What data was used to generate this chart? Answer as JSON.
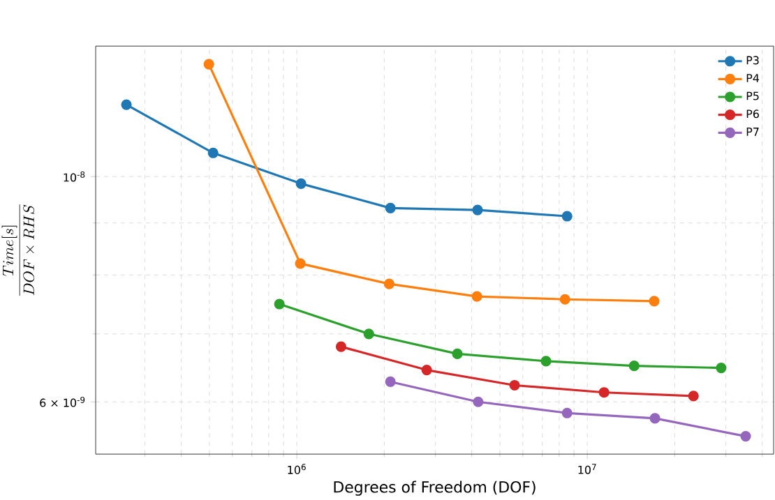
{
  "chart_data": {
    "type": "line",
    "xlabel": "Degrees of Freedom (DOF)",
    "ylabel": "\\frac{Time[s]}{DOF\\times RHS}",
    "xlim": [
      203000,
      43800000
    ],
    "ylim": [
      5.33e-09,
      1.344e-08
    ],
    "log": "xy",
    "xticks": [
      {
        "value": 300000,
        "label": null
      },
      {
        "value": 400000,
        "label": null
      },
      {
        "value": 500000,
        "label": null
      },
      {
        "value": 600000,
        "label": null
      },
      {
        "value": 700000,
        "label": null
      },
      {
        "value": 800000,
        "label": null
      },
      {
        "value": 900000,
        "label": null
      },
      {
        "value": 1000000,
        "label": "10$^{6}$"
      },
      {
        "value": 2000000,
        "label": null
      },
      {
        "value": 3000000,
        "label": null
      },
      {
        "value": 4000000,
        "label": null
      },
      {
        "value": 5000000,
        "label": null
      },
      {
        "value": 6000000,
        "label": null
      },
      {
        "value": 7000000,
        "label": null
      },
      {
        "value": 8000000,
        "label": null
      },
      {
        "value": 9000000,
        "label": null
      },
      {
        "value": 10000000,
        "label": "10$^{7}$"
      },
      {
        "value": 20000000,
        "label": null
      },
      {
        "value": 30000000,
        "label": null
      },
      {
        "value": 40000000,
        "label": null
      }
    ],
    "yticks": [
      {
        "value": 6e-09,
        "label": "6 × 10$^{-9}$"
      },
      {
        "value": 7e-09,
        "label": null
      },
      {
        "value": 8e-09,
        "label": null
      },
      {
        "value": 9e-09,
        "label": null
      },
      {
        "value": 1e-08,
        "label": "10$^{-8}$"
      }
    ],
    "grid": true,
    "legend": "top right",
    "marker": "circle",
    "line_style": "solid",
    "series": [
      {
        "name": "P3",
        "color": "#1f77b4",
        "x": [
          259000,
          515000,
          1034000,
          2100000,
          4190000,
          8520000
        ],
        "values": [
          1.177e-08,
          1.055e-08,
          9.84e-09,
          9.31e-09,
          9.27e-09,
          9.14e-09
        ]
      },
      {
        "name": "P4",
        "color": "#ff7f0e",
        "x": [
          498000,
          1028000,
          2080000,
          4170000,
          8380000,
          17000000
        ],
        "values": [
          1.29e-08,
          8.21e-09,
          7.84e-09,
          7.62e-09,
          7.57e-09,
          7.54e-09
        ]
      },
      {
        "name": "P5",
        "color": "#2ca02c",
        "x": [
          871000,
          1770000,
          3570000,
          7210000,
          14500000,
          28900000
        ],
        "values": [
          7.49e-09,
          7e-09,
          6.69e-09,
          6.58e-09,
          6.51e-09,
          6.48e-09
        ]
      },
      {
        "name": "P6",
        "color": "#d62728",
        "x": [
          1420000,
          2800000,
          5620000,
          11420000,
          23200000
        ],
        "values": [
          6.8e-09,
          6.45e-09,
          6.23e-09,
          6.13e-09,
          6.08e-09
        ]
      },
      {
        "name": "P7",
        "color": "#9467bd",
        "x": [
          2100000,
          4210000,
          8520000,
          17100000,
          35100000
        ],
        "values": [
          6.28e-09,
          6e-09,
          5.85e-09,
          5.78e-09,
          5.55e-09
        ]
      }
    ]
  }
}
